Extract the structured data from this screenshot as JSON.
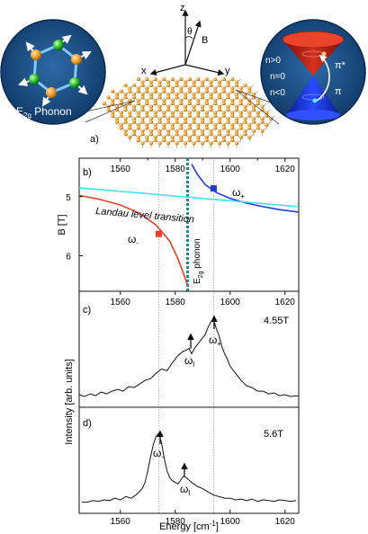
{
  "figure": {
    "label_a": "a)",
    "axis_z": "z",
    "axis_x": "x",
    "axis_y": "y",
    "theta": "θ",
    "b_label": "B",
    "phonon_inset_label": "E",
    "phonon_inset_sub": "2g",
    "phonon_inset_tail": " Phonon",
    "dirac_n_gt0": "n>0",
    "dirac_n_eq0": "n=0",
    "dirac_n_lt0": "n<0",
    "dirac_pi_star": "π*",
    "dirac_pi": "π"
  },
  "panel_b": {
    "label": "b)",
    "ylabel": "B [T]",
    "landau_label": "Landau level transition",
    "phonon_label_main": "E",
    "phonon_label_sub": "2g",
    "phonon_label_tail": " phonon",
    "omega_plus": "ω",
    "omega_plus_sub": "+",
    "omega_minus": "ω",
    "omega_minus_sub": "-"
  },
  "panel_c": {
    "label": "c)",
    "field": "4.55T",
    "peak_l": "ω",
    "peak_l_sub": "l",
    "peak_plus": "ω",
    "peak_plus_sub": "+"
  },
  "panel_d": {
    "label": "d)",
    "field": "5.6T",
    "peak_minus": "ω",
    "peak_minus_sub": "-",
    "peak_l": "ω",
    "peak_l_sub": "l"
  },
  "shared": {
    "ylabel": "Intensity [arb. units]",
    "xlabel": "Energy [cm",
    "xlabel_sup": "-1",
    "xlabel_tail": "]"
  },
  "chart_data": [
    {
      "type": "line",
      "panel": "b",
      "xlim": [
        1545,
        1625
      ],
      "ylim": [
        4.35,
        6.6
      ],
      "y_inverted": true,
      "x_ticks": [
        1560,
        1580,
        1600,
        1620
      ],
      "y_ticks": [
        5,
        6
      ],
      "series": [
        {
          "color": "#1f3ddb",
          "x": [
            1586,
            1588,
            1591,
            1595,
            1600,
            1606,
            1612,
            1618,
            1625
          ],
          "y": [
            4.45,
            4.62,
            4.8,
            4.93,
            5.03,
            5.11,
            5.17,
            5.22,
            5.26
          ]
        },
        {
          "color": "#e8402a",
          "x": [
            1545,
            1552,
            1560,
            1567,
            1573,
            1578,
            1581,
            1583,
            1584.5
          ],
          "y": [
            4.98,
            5.04,
            5.14,
            5.28,
            5.48,
            5.75,
            6.05,
            6.3,
            6.5
          ]
        },
        {
          "name": "Landau level transition",
          "color": "#3de3ee",
          "x": [
            1545,
            1625
          ],
          "y": [
            4.85,
            5.17
          ]
        }
      ],
      "markers": [
        {
          "name": "ω+",
          "x": 1594,
          "y": 4.86,
          "color": "#1f3ddb"
        },
        {
          "name": "ω-",
          "x": 1574,
          "y": 5.63,
          "color": "#e8402a"
        }
      ],
      "vline": {
        "name": "E2g phonon",
        "x": 1584.5,
        "color": "#1e8c8c"
      },
      "guides_x": [
        1574,
        1594
      ]
    },
    {
      "type": "line",
      "panel": "c",
      "field": "4.55T",
      "xlim": [
        1545,
        1625
      ],
      "ylim": [
        0,
        1
      ],
      "x_ticks": [
        1560,
        1580,
        1600,
        1620
      ],
      "x": [
        1545,
        1547,
        1549,
        1551,
        1553,
        1555,
        1557,
        1559,
        1561,
        1563,
        1565,
        1567,
        1569,
        1571,
        1573,
        1575,
        1577,
        1579,
        1581,
        1583,
        1584,
        1585,
        1586,
        1587,
        1588,
        1589,
        1590,
        1591,
        1592,
        1593,
        1594,
        1595,
        1596,
        1597,
        1598,
        1599,
        1600,
        1602,
        1604,
        1606,
        1608,
        1610,
        1612,
        1614,
        1616,
        1618,
        1620,
        1622,
        1625
      ],
      "y": [
        0.06,
        0.04,
        0.07,
        0.05,
        0.09,
        0.07,
        0.1,
        0.12,
        0.1,
        0.15,
        0.14,
        0.18,
        0.22,
        0.24,
        0.3,
        0.35,
        0.33,
        0.42,
        0.5,
        0.55,
        0.56,
        0.58,
        0.52,
        0.58,
        0.62,
        0.66,
        0.7,
        0.74,
        0.82,
        0.88,
        0.9,
        0.8,
        0.72,
        0.6,
        0.52,
        0.46,
        0.38,
        0.3,
        0.22,
        0.16,
        0.14,
        0.1,
        0.1,
        0.07,
        0.08,
        0.05,
        0.06,
        0.04,
        0.05
      ]
    },
    {
      "type": "line",
      "panel": "d",
      "field": "5.6T",
      "xlim": [
        1545,
        1625
      ],
      "ylim": [
        0,
        1
      ],
      "x_ticks": [
        1560,
        1580,
        1600,
        1620
      ],
      "x": [
        1546,
        1548,
        1550,
        1552,
        1554,
        1556,
        1558,
        1560,
        1562,
        1564,
        1566,
        1568,
        1569,
        1570,
        1571,
        1572,
        1573,
        1574,
        1575,
        1576,
        1577,
        1578,
        1579,
        1580,
        1581,
        1582,
        1583,
        1584,
        1585,
        1586,
        1588,
        1590,
        1592,
        1594,
        1596,
        1598,
        1600,
        1602,
        1604,
        1606,
        1608,
        1610,
        1612,
        1614,
        1616,
        1618,
        1620,
        1622,
        1624
      ],
      "y": [
        0.05,
        0.05,
        0.07,
        0.06,
        0.08,
        0.07,
        0.1,
        0.08,
        0.12,
        0.1,
        0.15,
        0.22,
        0.3,
        0.45,
        0.62,
        0.78,
        0.88,
        0.92,
        0.8,
        0.6,
        0.45,
        0.36,
        0.32,
        0.3,
        0.28,
        0.33,
        0.38,
        0.36,
        0.33,
        0.3,
        0.25,
        0.22,
        0.18,
        0.14,
        0.12,
        0.1,
        0.1,
        0.08,
        0.09,
        0.07,
        0.09,
        0.06,
        0.08,
        0.07,
        0.06,
        0.08,
        0.07,
        0.06,
        0.07
      ]
    }
  ]
}
